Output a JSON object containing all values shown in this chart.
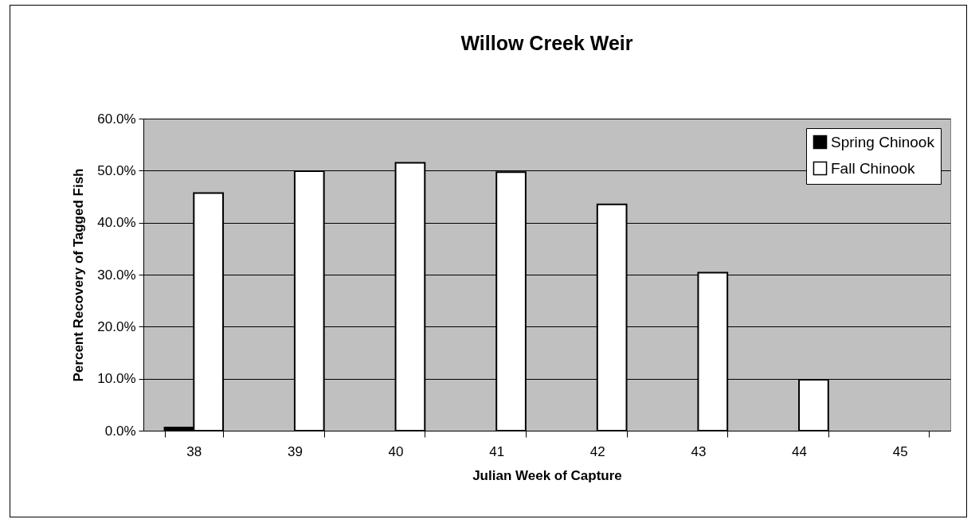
{
  "chart_data": {
    "type": "bar",
    "title": "Willow Creek Weir",
    "xlabel": "Julian Week of Capture",
    "ylabel": "Percent Recovery of Tagged Fish",
    "categories": [
      "38",
      "39",
      "40",
      "41",
      "42",
      "43",
      "44",
      "45"
    ],
    "series": [
      {
        "name": "Spring Chinook",
        "color": "#000000",
        "values": [
          0.6,
          null,
          null,
          null,
          null,
          null,
          null,
          null
        ]
      },
      {
        "name": "Fall Chinook",
        "color": "#ffffff",
        "values": [
          45.7,
          49.9,
          51.5,
          49.7,
          43.5,
          30.4,
          9.8,
          null
        ]
      }
    ],
    "ylim": [
      0,
      60
    ],
    "yticks": [
      {
        "value": 0,
        "label": "0.0%"
      },
      {
        "value": 10,
        "label": "10.0%"
      },
      {
        "value": 20,
        "label": "20.0%"
      },
      {
        "value": 30,
        "label": "30.0%"
      },
      {
        "value": 40,
        "label": "40.0%"
      },
      {
        "value": 50,
        "label": "50.0%"
      },
      {
        "value": 60,
        "label": "60.0%"
      }
    ],
    "grid": "y",
    "legend": "top right"
  }
}
